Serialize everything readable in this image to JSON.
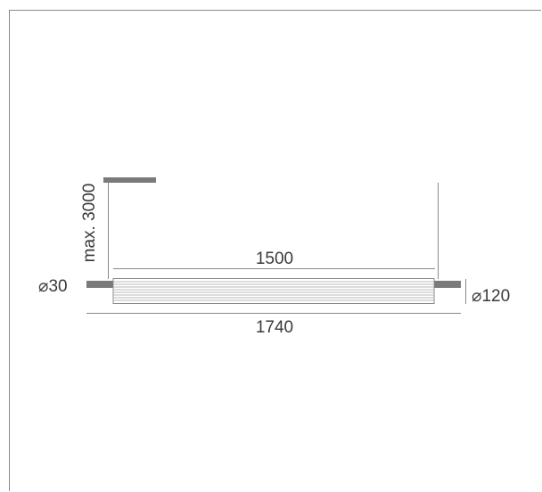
{
  "drawing": {
    "suspension_height_label": "max. 3000",
    "body_length_label": "1500",
    "overall_length_label": "1740",
    "end_diameter_label": "⌀30",
    "body_diameter_label": "⌀120"
  },
  "colors": {
    "stroke": "#8a8a8a",
    "bar": "#7a7a7a",
    "text": "#3a3a3a",
    "body_lines": "#b8b8b8"
  }
}
